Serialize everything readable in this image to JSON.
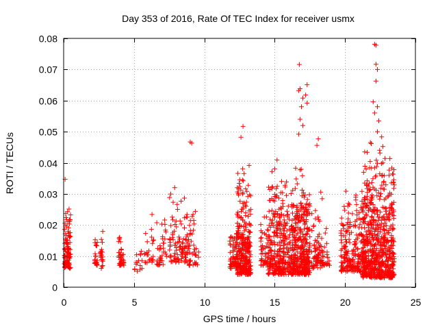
{
  "chart_data": {
    "type": "scatter",
    "title": "Day 353 of 2016, Rate Of TEC Index for receiver usmx",
    "xlabel": "GPS time / hours",
    "ylabel": "ROTI / TECUs",
    "xlim": [
      0,
      25
    ],
    "ylim": [
      0,
      0.08
    ],
    "xticks": [
      0,
      5,
      10,
      15,
      20,
      25
    ],
    "xtick_labels": [
      "0",
      "5",
      "10",
      "15",
      "20",
      "25"
    ],
    "yticks": [
      0,
      0.01,
      0.02,
      0.03,
      0.04,
      0.05,
      0.06,
      0.07,
      0.08
    ],
    "ytick_labels": [
      "0",
      "0.01",
      "0.02",
      "0.03",
      "0.04",
      "0.05",
      "0.06",
      "0.07",
      "0.08"
    ],
    "grid": true,
    "legend": "none",
    "marker": "+",
    "color": "#ff0000",
    "clusters": [
      {
        "x": [
          0.05,
          0.5
        ],
        "y": [
          0.006,
          0.029
        ],
        "n": 110
      },
      {
        "x": [
          2.2,
          2.4
        ],
        "y": [
          0.007,
          0.022
        ],
        "n": 25
      },
      {
        "x": [
          2.6,
          2.8
        ],
        "y": [
          0.006,
          0.019
        ],
        "n": 20
      },
      {
        "x": [
          3.9,
          4.3
        ],
        "y": [
          0.007,
          0.02
        ],
        "n": 40
      },
      {
        "x": [
          5.0,
          5.6
        ],
        "y": [
          0.005,
          0.02
        ],
        "n": 15
      },
      {
        "x": [
          5.7,
          6.4
        ],
        "y": [
          0.007,
          0.025
        ],
        "n": 25
      },
      {
        "x": [
          6.6,
          7.4
        ],
        "y": [
          0.007,
          0.025
        ],
        "n": 35
      },
      {
        "x": [
          7.5,
          8.2
        ],
        "y": [
          0.008,
          0.036
        ],
        "n": 50
      },
      {
        "x": [
          8.2,
          8.8
        ],
        "y": [
          0.008,
          0.03
        ],
        "n": 50
      },
      {
        "x": [
          8.8,
          9.6
        ],
        "y": [
          0.007,
          0.028
        ],
        "n": 45
      },
      {
        "x": [
          11.8,
          12.3
        ],
        "y": [
          0.006,
          0.024
        ],
        "n": 60
      },
      {
        "x": [
          12.3,
          13.3
        ],
        "y": [
          0.004,
          0.04
        ],
        "n": 320
      },
      {
        "x": [
          14.0,
          14.6
        ],
        "y": [
          0.007,
          0.026
        ],
        "n": 50
      },
      {
        "x": [
          14.5,
          16.2
        ],
        "y": [
          0.004,
          0.042
        ],
        "n": 320
      },
      {
        "x": [
          16.2,
          17.5
        ],
        "y": [
          0.004,
          0.043
        ],
        "n": 360
      },
      {
        "x": [
          17.6,
          18.4
        ],
        "y": [
          0.006,
          0.034
        ],
        "n": 70
      },
      {
        "x": [
          18.3,
          18.9
        ],
        "y": [
          0.007,
          0.02
        ],
        "n": 30
      },
      {
        "x": [
          19.7,
          21.2
        ],
        "y": [
          0.005,
          0.035
        ],
        "n": 200
      },
      {
        "x": [
          21.2,
          23.5
        ],
        "y": [
          0.003,
          0.048
        ],
        "n": 700
      }
    ],
    "outliers": [
      {
        "x": 0.1,
        "y": 0.0347
      },
      {
        "x": 9.0,
        "y": 0.0467
      },
      {
        "x": 9.1,
        "y": 0.0463
      },
      {
        "x": 12.75,
        "y": 0.0517
      },
      {
        "x": 12.6,
        "y": 0.0482
      },
      {
        "x": 16.75,
        "y": 0.0716
      },
      {
        "x": 16.8,
        "y": 0.0638
      },
      {
        "x": 16.7,
        "y": 0.0632
      },
      {
        "x": 17.3,
        "y": 0.0651
      },
      {
        "x": 17.2,
        "y": 0.0618
      },
      {
        "x": 17.0,
        "y": 0.0608
      },
      {
        "x": 16.9,
        "y": 0.058
      },
      {
        "x": 17.3,
        "y": 0.0592
      },
      {
        "x": 16.8,
        "y": 0.054
      },
      {
        "x": 17.0,
        "y": 0.052
      },
      {
        "x": 16.7,
        "y": 0.0492
      },
      {
        "x": 18.0,
        "y": 0.0456
      },
      {
        "x": 18.1,
        "y": 0.0477
      },
      {
        "x": 22.1,
        "y": 0.0781
      },
      {
        "x": 22.2,
        "y": 0.0778
      },
      {
        "x": 22.2,
        "y": 0.0717
      },
      {
        "x": 22.3,
        "y": 0.07
      },
      {
        "x": 22.2,
        "y": 0.0663
      },
      {
        "x": 22.0,
        "y": 0.0596
      },
      {
        "x": 22.3,
        "y": 0.058
      },
      {
        "x": 22.1,
        "y": 0.056
      },
      {
        "x": 22.4,
        "y": 0.0535
      },
      {
        "x": 22.3,
        "y": 0.05
      },
      {
        "x": 22.6,
        "y": 0.0483
      },
      {
        "x": 21.8,
        "y": 0.0465
      }
    ]
  }
}
